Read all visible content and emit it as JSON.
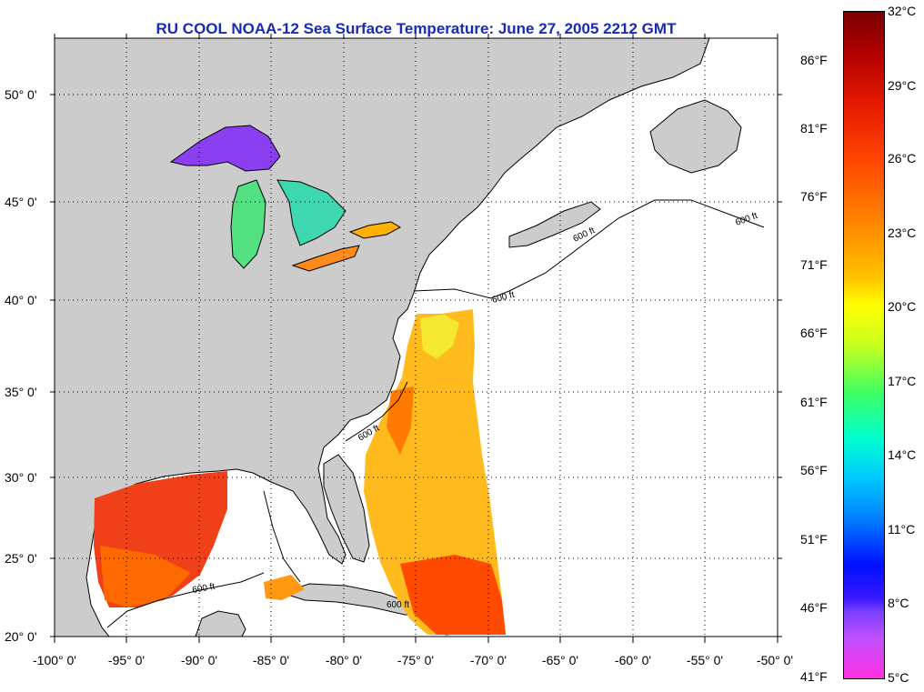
{
  "title": "RU COOL  NOAA-12  Sea Surface Temperature:  June 27, 2005 2212 GMT",
  "lat_labels": [
    "50° 0'",
    "45° 0'",
    "40° 0'",
    "35° 0'",
    "30° 0'",
    "25° 0'",
    "20° 0'"
  ],
  "lon_labels": [
    "-100° 0'",
    "-95° 0'",
    "-90° 0'",
    "-85° 0'",
    "-80° 0'",
    "-75° 0'",
    "-70° 0'",
    "-65° 0'",
    "-60° 0'",
    "-55° 0'",
    "-50° 0'"
  ],
  "contour_label": "600 ft",
  "colorbar": {
    "fahrenheit": [
      "86°F",
      "81°F",
      "76°F",
      "71°F",
      "66°F",
      "61°F",
      "56°F",
      "51°F",
      "46°F",
      "41°F"
    ],
    "celsius": [
      "32°C",
      "29°C",
      "26°C",
      "23°C",
      "20°C",
      "17°C",
      "14°C",
      "11°C",
      "8°C",
      "5°C"
    ]
  },
  "colors": {
    "land": "#cccccc",
    "ocean": "#ffffff",
    "title": "#1a2ab5"
  }
}
